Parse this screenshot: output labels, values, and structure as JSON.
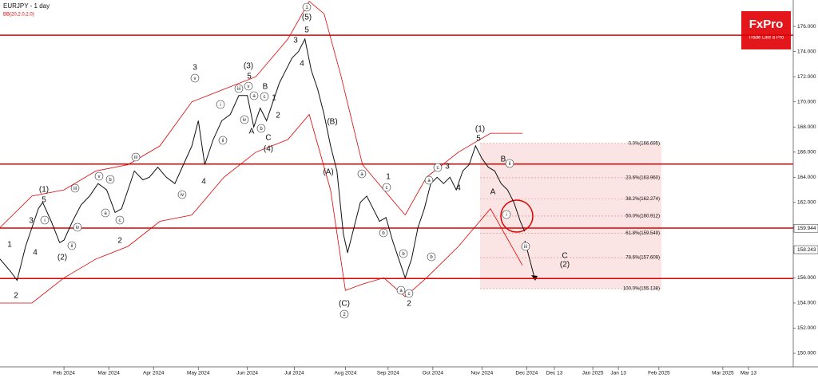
{
  "chart_data": {
    "type": "line",
    "title": "EURJPY - 1 day",
    "indicator": "BB(20,2.0,2.0)",
    "xlim": [
      0,
      372
    ],
    "ylim": [
      149.05,
      178.1
    ],
    "xticks": [
      {
        "value": 30,
        "label": "Feb 2024"
      },
      {
        "value": 51,
        "label": "Mar 2024"
      },
      {
        "value": 72,
        "label": "Apr 2024"
      },
      {
        "value": 93,
        "label": "May 2024"
      },
      {
        "value": 116,
        "label": "Jun 2024"
      },
      {
        "value": 138,
        "label": "Jul 2024"
      },
      {
        "value": 162,
        "label": "Aug 2024"
      },
      {
        "value": 182,
        "label": "Sep 2024"
      },
      {
        "value": 203,
        "label": "Oct 2024"
      },
      {
        "value": 226,
        "label": "Nov 2024"
      },
      {
        "value": 247,
        "label": "Dec 2024"
      },
      {
        "value": 260,
        "label": "Dec 13"
      },
      {
        "value": 278,
        "label": "Jan 2025"
      },
      {
        "value": 290,
        "label": "Jan 13"
      },
      {
        "value": 309,
        "label": "Feb 2025"
      },
      {
        "value": 339,
        "label": "Mar 2025"
      },
      {
        "value": 351,
        "label": "Mar 13"
      }
    ],
    "yticks": [
      {
        "value": 150,
        "label": "150.000"
      },
      {
        "value": 152,
        "label": "152.000"
      },
      {
        "value": 154,
        "label": "154.000"
      },
      {
        "value": 156,
        "label": "156.000"
      },
      {
        "value": 158,
        "label": "158.000"
      },
      {
        "value": 160,
        "label": "160.000"
      },
      {
        "value": 162,
        "label": "162.000"
      },
      {
        "value": 164,
        "label": "164.000"
      },
      {
        "value": 166,
        "label": "166.000"
      },
      {
        "value": 168,
        "label": "168.000"
      },
      {
        "value": 170,
        "label": "170.000"
      },
      {
        "value": 172,
        "label": "172.000"
      },
      {
        "value": 174,
        "label": "174.000"
      },
      {
        "value": 176,
        "label": "176.000"
      }
    ],
    "series": [
      {
        "color": "#111111",
        "x": [
          0,
          5,
          8,
          12,
          15,
          18,
          20,
          24,
          28,
          30,
          34,
          38,
          42,
          46,
          50,
          54,
          57,
          60,
          63,
          67,
          70,
          74,
          78,
          82,
          86,
          90,
          93,
          96,
          100,
          104,
          108,
          112,
          116,
          119,
          122,
          125,
          128,
          131,
          134,
          137,
          140,
          143,
          146,
          149,
          152,
          155,
          158,
          161,
          163,
          166,
          169,
          172,
          175,
          178,
          181,
          184,
          187,
          190,
          193,
          196,
          199,
          202,
          205,
          208,
          211,
          214,
          217,
          220,
          223,
          226,
          229,
          232,
          235,
          238,
          241,
          244,
          246
        ],
        "values": [
          157.5,
          156.5,
          155.8,
          158.5,
          160.0,
          161.5,
          162.0,
          160.5,
          158.8,
          159.0,
          160.5,
          161.8,
          162.5,
          163.5,
          163.0,
          161.2,
          161.5,
          163.0,
          164.5,
          163.8,
          164.0,
          164.8,
          164.0,
          163.5,
          165.0,
          166.5,
          168.5,
          165.0,
          167.0,
          168.5,
          169.0,
          170.5,
          170.5,
          168.0,
          169.5,
          168.5,
          170.0,
          171.5,
          172.5,
          173.5,
          174.0,
          175.0,
          172.5,
          171.0,
          169.0,
          166.5,
          164.5,
          159.5,
          158.0,
          160.0,
          162.0,
          162.5,
          161.5,
          160.5,
          160.8,
          159.0,
          157.5,
          156.0,
          157.5,
          160.0,
          161.5,
          163.5,
          164.0,
          163.5,
          164.0,
          163.0,
          164.5,
          165.0,
          166.5,
          165.5,
          164.8,
          164.5,
          163.5,
          163.0,
          162.0,
          160.5,
          159.7
        ]
      },
      {
        "color": "#e00000",
        "x": [
          0,
          15,
          30,
          45,
          60,
          75,
          90,
          105,
          120,
          135,
          145,
          152,
          160,
          170,
          180,
          190,
          200,
          215,
          230,
          245
        ],
        "values": [
          160,
          162.5,
          163,
          164.5,
          165,
          166.5,
          170,
          171,
          172,
          175,
          178,
          177,
          172,
          165,
          163,
          161,
          164,
          166,
          167.5,
          167.5
        ]
      },
      {
        "color": "#e00000",
        "x": [
          0,
          15,
          30,
          45,
          60,
          75,
          90,
          105,
          120,
          135,
          145,
          155,
          162,
          170,
          180,
          190,
          200,
          215,
          230,
          245
        ],
        "values": [
          154,
          154,
          156,
          157.5,
          158.5,
          160.5,
          161,
          164,
          166,
          167,
          169,
          163,
          155,
          155.5,
          156,
          154.5,
          156,
          158.5,
          161.5,
          157
        ]
      }
    ],
    "level_color": "#e00000",
    "levels": [
      175.3,
      165.05,
      159.96,
      155.95
    ],
    "fib_color": "#f3c4c4",
    "fib": [
      {
        "value": 166.695,
        "label": "0.0%(166.695)"
      },
      {
        "value": 163.96,
        "label": "23.6%(163.960)"
      },
      {
        "value": 162.274,
        "label": "38.2%(162.274)"
      },
      {
        "value": 160.912,
        "label": "50.0%(160.912)"
      },
      {
        "value": 159.549,
        "label": "61.8%(159.549)"
      },
      {
        "value": 157.609,
        "label": "78.6%(157.609)"
      },
      {
        "value": 155.138,
        "label": "100.0%(155.138)"
      }
    ],
    "price_labels": [
      {
        "value": 159.944,
        "label": "159.944"
      },
      {
        "value": 158.243,
        "label": "158.243"
      }
    ],
    "annotations": [
      {
        "text": "1"
      },
      {
        "text": "2"
      },
      {
        "text": "3"
      },
      {
        "text": "4"
      },
      {
        "text": "(1)"
      },
      {
        "text": "5"
      },
      {
        "text": "(2)"
      },
      {
        "text": "i",
        "circled": true
      },
      {
        "text": "ii",
        "circled": true
      },
      {
        "text": "iii",
        "circled": true
      },
      {
        "text": "iv",
        "circled": true
      },
      {
        "text": "v",
        "circled": true
      },
      {
        "text": "a",
        "circled": true
      },
      {
        "text": "b",
        "circled": true
      },
      {
        "text": "c",
        "circled": true
      },
      {
        "text": "2"
      },
      {
        "text": "iii",
        "circled": true
      },
      {
        "text": "iv",
        "circled": true
      },
      {
        "text": "4"
      },
      {
        "text": "v",
        "circled": true
      },
      {
        "text": "3"
      },
      {
        "text": "i",
        "circled": true
      },
      {
        "text": "ii",
        "circled": true
      },
      {
        "text": "iii",
        "circled": true
      },
      {
        "text": "iv",
        "circled": true
      },
      {
        "text": "v",
        "circled": true
      },
      {
        "text": "(3)"
      },
      {
        "text": "5"
      },
      {
        "text": "A"
      },
      {
        "text": "a",
        "circled": true
      },
      {
        "text": "C"
      },
      {
        "text": "(4)"
      },
      {
        "text": "b",
        "circled": true
      },
      {
        "text": "c",
        "circled": true
      },
      {
        "text": "B"
      },
      {
        "text": "1"
      },
      {
        "text": "2"
      },
      {
        "text": "3"
      },
      {
        "text": "4"
      },
      {
        "text": "5"
      },
      {
        "text": "(5)"
      },
      {
        "text": "1",
        "circled": true
      },
      {
        "text": "(B)"
      },
      {
        "text": "(A)"
      },
      {
        "text": "(C)"
      },
      {
        "text": "2",
        "circled": true
      },
      {
        "text": "a",
        "circled": true
      },
      {
        "text": "1"
      },
      {
        "text": "c",
        "circled": true
      },
      {
        "text": "b",
        "circled": true
      },
      {
        "text": "b",
        "circled": true
      },
      {
        "text": "a",
        "circled": true
      },
      {
        "text": "c",
        "circled": true
      },
      {
        "text": "2"
      },
      {
        "text": "a",
        "circled": true
      },
      {
        "text": "b",
        "circled": true
      },
      {
        "text": "c",
        "circled": true
      },
      {
        "text": "3"
      },
      {
        "text": "4"
      },
      {
        "text": "(1)"
      },
      {
        "text": "5"
      },
      {
        "text": "B"
      },
      {
        "text": "ii",
        "circled": true
      },
      {
        "text": "A"
      },
      {
        "text": "i",
        "circled": true
      },
      {
        "text": "iii",
        "circled": true
      },
      {
        "text": "C"
      },
      {
        "text": "(2)"
      }
    ]
  },
  "logo": {
    "name": "FxPro",
    "tagline": "Trade Like a Pro"
  }
}
